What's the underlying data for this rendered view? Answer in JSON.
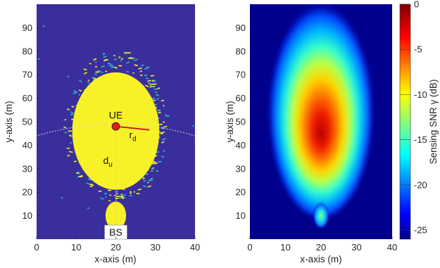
{
  "chart_data": [
    {
      "type": "heatmap",
      "title": "",
      "xlabel": "x-axis (m)",
      "ylabel": "y-axis (m)",
      "xlim": [
        0,
        40
      ],
      "ylim": [
        0,
        100
      ],
      "xticks": [
        "0",
        "10",
        "20",
        "30",
        "40"
      ],
      "yticks": [
        "10",
        "20",
        "30",
        "40",
        "50",
        "60",
        "70",
        "80",
        "90"
      ],
      "colors": {
        "background": "#3a2e9c",
        "region": "#f7f127",
        "speckle": "#2fb5c9",
        "marker": "#e01b1b",
        "line": "#c41a1a",
        "dotted": "#d6d6d6"
      },
      "main_region": {
        "x_center": 20,
        "y_center": 46,
        "x_halfwidth": 11,
        "y_halfheight": 25
      },
      "small_region": {
        "x_center": 20,
        "y_center": 10,
        "x_halfwidth": 2.6,
        "y_halfheight": 6
      },
      "annotations": {
        "ue_label": "UE",
        "ue_point": [
          20,
          48
        ],
        "bs_label": "BS",
        "bs_point": [
          20,
          0
        ],
        "rd_main": "r",
        "rd_sub": "d",
        "du_main": "d",
        "du_sub": "u",
        "rd_end": [
          28.5,
          46.5
        ],
        "arc_radius": 48
      }
    },
    {
      "type": "heatmap",
      "title": "",
      "xlabel": "x-axis (m)",
      "ylabel": "y-axis (m)",
      "xlim": [
        0,
        40
      ],
      "ylim": [
        0,
        100
      ],
      "xticks": [
        "0",
        "10",
        "20",
        "30",
        "40"
      ],
      "yticks": [
        "10",
        "20",
        "30",
        "40",
        "50",
        "60",
        "70",
        "80",
        "90"
      ],
      "colorbar": {
        "label": "Sensing SNR γ  (dB)",
        "range": [
          -26,
          0
        ],
        "ticks": [
          "0",
          "-5",
          "-10",
          "-15",
          "-20",
          "-25"
        ]
      },
      "colormap": "jet",
      "peak": {
        "x": 20,
        "y": 42,
        "value_db": 0
      },
      "small_blob": {
        "x": 20,
        "y": 10,
        "value_db": -14
      }
    }
  ]
}
